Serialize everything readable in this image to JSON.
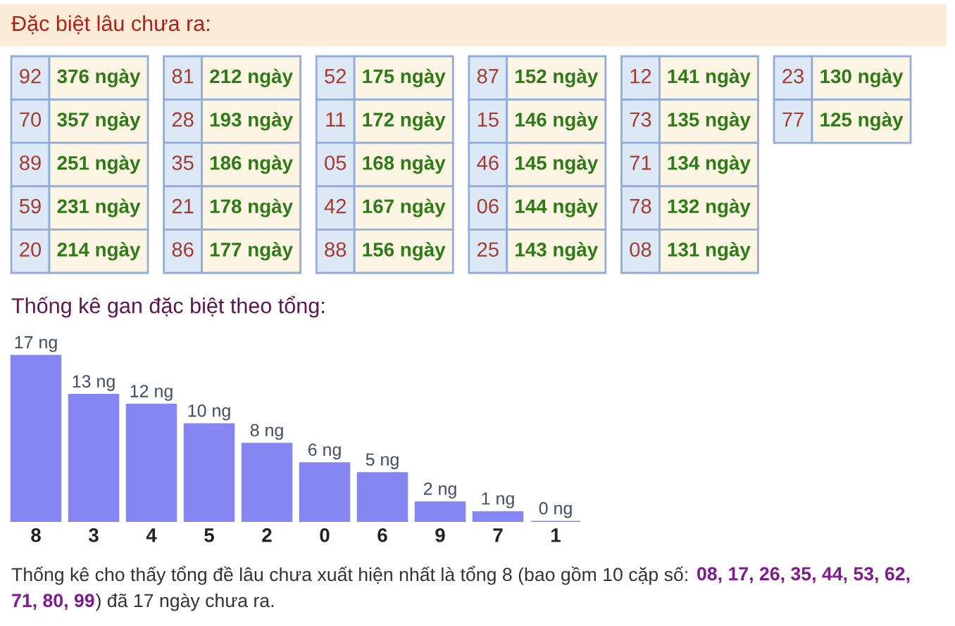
{
  "chart_data": [
    {
      "type": "other",
      "title": "Đặc biệt lâu chưa ra:",
      "categories": [
        "92",
        "70",
        "89",
        "59",
        "20",
        "81",
        "28",
        "35",
        "21",
        "86",
        "52",
        "11",
        "05",
        "42",
        "88",
        "87",
        "15",
        "46",
        "06",
        "25",
        "12",
        "73",
        "71",
        "78",
        "08",
        "23",
        "77"
      ],
      "values": [
        376,
        357,
        251,
        231,
        214,
        212,
        193,
        186,
        178,
        177,
        175,
        172,
        168,
        167,
        156,
        152,
        146,
        145,
        144,
        143,
        141,
        135,
        134,
        132,
        131,
        130,
        125
      ],
      "value_labels": [
        "376 ngày",
        "357 ngày",
        "251 ngày",
        "231 ngày",
        "214 ngày",
        "212 ngày",
        "193 ngày",
        "186 ngày",
        "178 ngày",
        "177 ngày",
        "175 ngày",
        "172 ngày",
        "168 ngày",
        "167 ngày",
        "156 ngày",
        "152 ngày",
        "146 ngày",
        "145 ngày",
        "144 ngày",
        "143 ngày",
        "141 ngày",
        "135 ngày",
        "134 ngày",
        "132 ngày",
        "131 ngày",
        "130 ngày",
        "125 ngày"
      ]
    },
    {
      "type": "bar",
      "title": "Thống kê gan đặc biệt theo tổng:",
      "categories": [
        "8",
        "3",
        "4",
        "5",
        "2",
        "0",
        "6",
        "9",
        "7",
        "1"
      ],
      "values": [
        17,
        13,
        12,
        10,
        8,
        6,
        5,
        2,
        1,
        0
      ],
      "value_labels": [
        "17 ng",
        "13 ng",
        "12 ng",
        "10 ng",
        "8 ng",
        "6 ng",
        "5 ng",
        "2 ng",
        "1 ng",
        "0 ng"
      ],
      "color": "#8585f3",
      "tick_labels": "x",
      "annotations": [
        "Thống kê cho thấy tổng đề lâu chưa xuất hiện nhất là tổng 8 (bao gồm 10 cặp số: ",
        "08, 17, 26, 35, 44, 53, 62, ",
        "71, 80, 99",
        ") đã 17 ngày chưa ra."
      ]
    }
  ]
}
